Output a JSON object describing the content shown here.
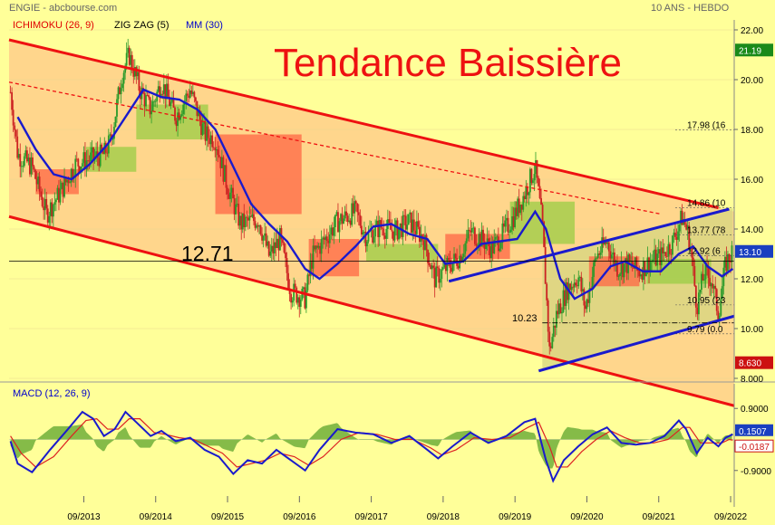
{
  "header": {
    "source": "ENGIE - abcbourse.com",
    "period": "10 ANS - HEBDO"
  },
  "legend": [
    {
      "label": "ICHIMOKU (26, 9)",
      "color": "#e00000"
    },
    {
      "label": "ZIG ZAG (5)",
      "color": "#000000"
    },
    {
      "label": "MM (30)",
      "color": "#0000cc"
    }
  ],
  "annotation_title": "Tendance Baissière",
  "levels": {
    "main_level": "12.71",
    "low_level": "10.23",
    "fib": [
      "17.98 (16",
      "14.86 (10",
      "13.77 (78",
      "12.92 (6",
      "10.95 (23",
      "9.79 (0.0"
    ]
  },
  "price_badges": [
    {
      "value": "21.19",
      "color": "#1a8a1a"
    },
    {
      "value": "13.10",
      "color": "#1a3fc0"
    },
    {
      "value": "8.630",
      "color": "#cc1111"
    }
  ],
  "macd_panel": {
    "label": "MACD (12, 26, 9)",
    "badges": [
      {
        "value": "0.1507",
        "color": "#1a3fc0"
      },
      {
        "value": "-0.0187",
        "color": "#cc1111"
      }
    ]
  },
  "chart_data": [
    {
      "type": "candlestick",
      "ylim": [
        8.0,
        22.0
      ],
      "y_ticks": [
        "22.00",
        "20.00",
        "18.00",
        "16.00",
        "14.00",
        "12.00",
        "10.00",
        "8.000"
      ],
      "y_tick_values": [
        22,
        20,
        18,
        16,
        14,
        12,
        10,
        8
      ],
      "x_ticks": [
        "09/2013",
        "09/2014",
        "09/2015",
        "09/2016",
        "09/2017",
        "09/2018",
        "09/2019",
        "09/2020",
        "09/2021",
        "09/2022"
      ],
      "x_tick_values": [
        2013.67,
        2014.67,
        2015.67,
        2016.67,
        2017.67,
        2018.67,
        2019.67,
        2020.67,
        2021.67,
        2022.67
      ],
      "xlim": [
        2012.63,
        2022.72
      ],
      "price_path": [
        [
          2012.65,
          19.5
        ],
        [
          2012.75,
          17.0
        ],
        [
          2012.95,
          16.5
        ],
        [
          2013.15,
          14.6
        ],
        [
          2013.35,
          15.5
        ],
        [
          2013.55,
          16.6
        ],
        [
          2013.75,
          16.8
        ],
        [
          2013.95,
          17.0
        ],
        [
          2014.05,
          17.6
        ],
        [
          2014.2,
          20.2
        ],
        [
          2014.3,
          21.0
        ],
        [
          2014.45,
          19.6
        ],
        [
          2014.6,
          18.8
        ],
        [
          2014.75,
          19.9
        ],
        [
          2014.95,
          18.5
        ],
        [
          2015.15,
          19.6
        ],
        [
          2015.35,
          17.8
        ],
        [
          2015.5,
          17.6
        ],
        [
          2015.65,
          15.9
        ],
        [
          2015.85,
          14.2
        ],
        [
          2016.1,
          14.4
        ],
        [
          2016.25,
          12.9
        ],
        [
          2016.4,
          13.6
        ],
        [
          2016.55,
          11.5
        ],
        [
          2016.75,
          11.2
        ],
        [
          2016.85,
          12.9
        ],
        [
          2017.0,
          13.5
        ],
        [
          2017.2,
          14.3
        ],
        [
          2017.45,
          14.7
        ],
        [
          2017.6,
          13.7
        ],
        [
          2017.8,
          14.1
        ],
        [
          2018.0,
          13.9
        ],
        [
          2018.2,
          14.3
        ],
        [
          2018.4,
          13.6
        ],
        [
          2018.55,
          12.0
        ],
        [
          2018.7,
          12.4
        ],
        [
          2018.9,
          12.9
        ],
        [
          2019.05,
          13.9
        ],
        [
          2019.2,
          13.6
        ],
        [
          2019.35,
          13.2
        ],
        [
          2019.5,
          13.8
        ],
        [
          2019.65,
          14.5
        ],
        [
          2019.8,
          15.4
        ],
        [
          2019.95,
          16.5
        ],
        [
          2020.05,
          14.2
        ],
        [
          2020.15,
          9.1
        ],
        [
          2020.25,
          10.6
        ],
        [
          2020.4,
          11.6
        ],
        [
          2020.55,
          12.1
        ],
        [
          2020.65,
          10.8
        ],
        [
          2020.8,
          12.9
        ],
        [
          2020.95,
          13.5
        ],
        [
          2021.1,
          12.4
        ],
        [
          2021.25,
          12.6
        ],
        [
          2021.4,
          12.3
        ],
        [
          2021.55,
          12.7
        ],
        [
          2021.7,
          12.9
        ],
        [
          2021.85,
          13.4
        ],
        [
          2022.0,
          14.5
        ],
        [
          2022.1,
          13.6
        ],
        [
          2022.2,
          10.9
        ],
        [
          2022.3,
          12.2
        ],
        [
          2022.4,
          12.0
        ],
        [
          2022.5,
          10.6
        ],
        [
          2022.6,
          12.6
        ],
        [
          2022.7,
          13.1
        ]
      ],
      "mm30_path": [
        [
          2012.75,
          18.5
        ],
        [
          2013.0,
          17.2
        ],
        [
          2013.25,
          16.2
        ],
        [
          2013.5,
          16.0
        ],
        [
          2013.75,
          16.6
        ],
        [
          2014.0,
          17.4
        ],
        [
          2014.25,
          18.5
        ],
        [
          2014.5,
          19.6
        ],
        [
          2014.75,
          19.3
        ],
        [
          2015.0,
          19.2
        ],
        [
          2015.25,
          18.8
        ],
        [
          2015.5,
          18.0
        ],
        [
          2015.75,
          16.5
        ],
        [
          2016.0,
          15.0
        ],
        [
          2016.25,
          14.2
        ],
        [
          2016.5,
          13.5
        ],
        [
          2016.75,
          12.4
        ],
        [
          2016.95,
          12.0
        ],
        [
          2017.2,
          12.6
        ],
        [
          2017.45,
          13.3
        ],
        [
          2017.7,
          14.1
        ],
        [
          2017.95,
          14.2
        ],
        [
          2018.2,
          13.8
        ],
        [
          2018.45,
          13.6
        ],
        [
          2018.7,
          12.6
        ],
        [
          2018.95,
          12.7
        ],
        [
          2019.2,
          13.4
        ],
        [
          2019.45,
          13.5
        ],
        [
          2019.7,
          13.6
        ],
        [
          2019.95,
          14.7
        ],
        [
          2020.1,
          14.0
        ],
        [
          2020.3,
          12.0
        ],
        [
          2020.5,
          11.2
        ],
        [
          2020.75,
          11.6
        ],
        [
          2021.0,
          12.5
        ],
        [
          2021.2,
          12.7
        ],
        [
          2021.45,
          12.3
        ],
        [
          2021.7,
          12.3
        ],
        [
          2021.95,
          13.0
        ],
        [
          2022.15,
          13.3
        ],
        [
          2022.35,
          12.5
        ],
        [
          2022.55,
          12.1
        ],
        [
          2022.7,
          12.4
        ]
      ],
      "ichimoku_cloud": [
        {
          "x0": 2013.0,
          "x1": 2013.6,
          "y0": 15.4,
          "y1": 16.4,
          "kind": "bear"
        },
        {
          "x0": 2013.7,
          "x1": 2014.4,
          "y0": 16.3,
          "y1": 17.3,
          "kind": "bull"
        },
        {
          "x0": 2014.4,
          "x1": 2015.4,
          "y0": 17.6,
          "y1": 19.0,
          "kind": "bull"
        },
        {
          "x0": 2015.5,
          "x1": 2016.7,
          "y0": 14.6,
          "y1": 17.8,
          "kind": "bear"
        },
        {
          "x0": 2016.8,
          "x1": 2017.5,
          "y0": 12.1,
          "y1": 13.6,
          "kind": "bear"
        },
        {
          "x0": 2017.6,
          "x1": 2018.6,
          "y0": 12.7,
          "y1": 13.4,
          "kind": "bull"
        },
        {
          "x0": 2018.7,
          "x1": 2019.6,
          "y0": 12.8,
          "y1": 13.8,
          "kind": "bear"
        },
        {
          "x0": 2019.6,
          "x1": 2020.5,
          "y0": 13.4,
          "y1": 15.1,
          "kind": "bull"
        },
        {
          "x0": 2020.7,
          "x1": 2021.4,
          "y0": 11.7,
          "y1": 12.9,
          "kind": "bear"
        },
        {
          "x0": 2021.5,
          "x1": 2022.4,
          "y0": 11.8,
          "y1": 12.8,
          "kind": "bull"
        }
      ],
      "trend_lines": [
        {
          "name": "resistance",
          "points": [
            [
              2012.63,
              21.6
            ],
            [
              2022.5,
              14.85
            ]
          ],
          "color": "#ee1111"
        },
        {
          "name": "support",
          "points": [
            [
              2012.63,
              14.5
            ],
            [
              2022.72,
              6.9
            ]
          ],
          "color": "#ee1111"
        },
        {
          "name": "mid",
          "points": [
            [
              2012.63,
              19.9
            ],
            [
              2021.7,
              14.6
            ]
          ],
          "color": "#ee1111",
          "dashed": true
        },
        {
          "name": "triangle-top",
          "points": [
            [
              2018.75,
              11.9
            ],
            [
              2022.65,
              14.8
            ]
          ],
          "color": "#1a1acc"
        },
        {
          "name": "triangle-bottom",
          "points": [
            [
              2020.0,
              8.3
            ],
            [
              2022.72,
              10.5
            ]
          ],
          "color": "#1a1acc"
        }
      ],
      "horizontal_levels": [
        {
          "value": 12.71,
          "x0": 2012.63,
          "x1": 2022.72
        },
        {
          "value": 10.23,
          "x0": 2020.05,
          "x1": 2022.72,
          "dashed": true
        }
      ],
      "fib_level_values": [
        17.98,
        14.86,
        13.77,
        12.92,
        10.95,
        9.79
      ]
    },
    {
      "type": "line",
      "ylim": [
        -1.3,
        1.3
      ],
      "y_ticks": [
        "0.9000",
        "-0.9000"
      ],
      "y_tick_values": [
        0.9,
        -0.9
      ],
      "macd": [
        [
          2012.65,
          -0.05
        ],
        [
          2012.75,
          -0.7
        ],
        [
          2012.95,
          -0.95
        ],
        [
          2013.2,
          -0.3
        ],
        [
          2013.45,
          0.3
        ],
        [
          2013.65,
          0.8
        ],
        [
          2013.8,
          0.6
        ],
        [
          2013.95,
          0.1
        ],
        [
          2014.1,
          0.3
        ],
        [
          2014.25,
          0.8
        ],
        [
          2014.4,
          0.5
        ],
        [
          2014.6,
          0.1
        ],
        [
          2014.75,
          0.25
        ],
        [
          2014.95,
          -0.05
        ],
        [
          2015.15,
          0.05
        ],
        [
          2015.35,
          -0.3
        ],
        [
          2015.55,
          -0.5
        ],
        [
          2015.75,
          -1.0
        ],
        [
          2015.95,
          -0.6
        ],
        [
          2016.15,
          -0.7
        ],
        [
          2016.35,
          -0.3
        ],
        [
          2016.55,
          -0.6
        ],
        [
          2016.75,
          -0.9
        ],
        [
          2016.95,
          -0.3
        ],
        [
          2017.2,
          0.3
        ],
        [
          2017.45,
          0.2
        ],
        [
          2017.7,
          0.15
        ],
        [
          2017.95,
          -0.1
        ],
        [
          2018.2,
          0.1
        ],
        [
          2018.45,
          -0.3
        ],
        [
          2018.6,
          -0.55
        ],
        [
          2018.8,
          -0.2
        ],
        [
          2019.05,
          0.2
        ],
        [
          2019.3,
          -0.1
        ],
        [
          2019.55,
          0.1
        ],
        [
          2019.8,
          0.5
        ],
        [
          2019.95,
          0.6
        ],
        [
          2020.1,
          -0.6
        ],
        [
          2020.2,
          -1.2
        ],
        [
          2020.35,
          -0.6
        ],
        [
          2020.55,
          -0.2
        ],
        [
          2020.75,
          0.15
        ],
        [
          2020.95,
          0.35
        ],
        [
          2021.15,
          -0.1
        ],
        [
          2021.35,
          -0.15
        ],
        [
          2021.55,
          -0.1
        ],
        [
          2021.75,
          0.1
        ],
        [
          2021.95,
          0.55
        ],
        [
          2022.05,
          0.3
        ],
        [
          2022.2,
          -0.4
        ],
        [
          2022.35,
          0.05
        ],
        [
          2022.5,
          -0.2
        ],
        [
          2022.6,
          0.05
        ],
        [
          2022.7,
          0.15
        ]
      ],
      "signal": [
        [
          2012.65,
          0.1
        ],
        [
          2012.8,
          -0.4
        ],
        [
          2013.0,
          -0.8
        ],
        [
          2013.25,
          -0.5
        ],
        [
          2013.5,
          0.1
        ],
        [
          2013.7,
          0.55
        ],
        [
          2013.85,
          0.6
        ],
        [
          2014.0,
          0.3
        ],
        [
          2014.15,
          0.3
        ],
        [
          2014.3,
          0.6
        ],
        [
          2014.45,
          0.6
        ],
        [
          2014.65,
          0.2
        ],
        [
          2014.8,
          0.15
        ],
        [
          2015.0,
          0.05
        ],
        [
          2015.2,
          0.0
        ],
        [
          2015.4,
          -0.2
        ],
        [
          2015.6,
          -0.4
        ],
        [
          2015.8,
          -0.8
        ],
        [
          2016.0,
          -0.7
        ],
        [
          2016.2,
          -0.6
        ],
        [
          2016.4,
          -0.4
        ],
        [
          2016.6,
          -0.5
        ],
        [
          2016.8,
          -0.75
        ],
        [
          2017.0,
          -0.5
        ],
        [
          2017.25,
          0.0
        ],
        [
          2017.5,
          0.2
        ],
        [
          2017.75,
          0.15
        ],
        [
          2018.0,
          0.0
        ],
        [
          2018.25,
          0.0
        ],
        [
          2018.5,
          -0.25
        ],
        [
          2018.65,
          -0.45
        ],
        [
          2018.85,
          -0.3
        ],
        [
          2019.1,
          0.05
        ],
        [
          2019.35,
          0.0
        ],
        [
          2019.6,
          0.05
        ],
        [
          2019.85,
          0.35
        ],
        [
          2020.0,
          0.5
        ],
        [
          2020.15,
          -0.2
        ],
        [
          2020.25,
          -0.8
        ],
        [
          2020.4,
          -0.8
        ],
        [
          2020.6,
          -0.35
        ],
        [
          2020.8,
          0.0
        ],
        [
          2021.0,
          0.25
        ],
        [
          2021.2,
          0.05
        ],
        [
          2021.4,
          -0.1
        ],
        [
          2021.6,
          -0.1
        ],
        [
          2021.8,
          0.0
        ],
        [
          2022.0,
          0.35
        ],
        [
          2022.1,
          0.35
        ],
        [
          2022.25,
          -0.1
        ],
        [
          2022.4,
          -0.1
        ],
        [
          2022.55,
          -0.1
        ],
        [
          2022.65,
          0.0
        ],
        [
          2022.7,
          -0.02
        ]
      ]
    }
  ]
}
